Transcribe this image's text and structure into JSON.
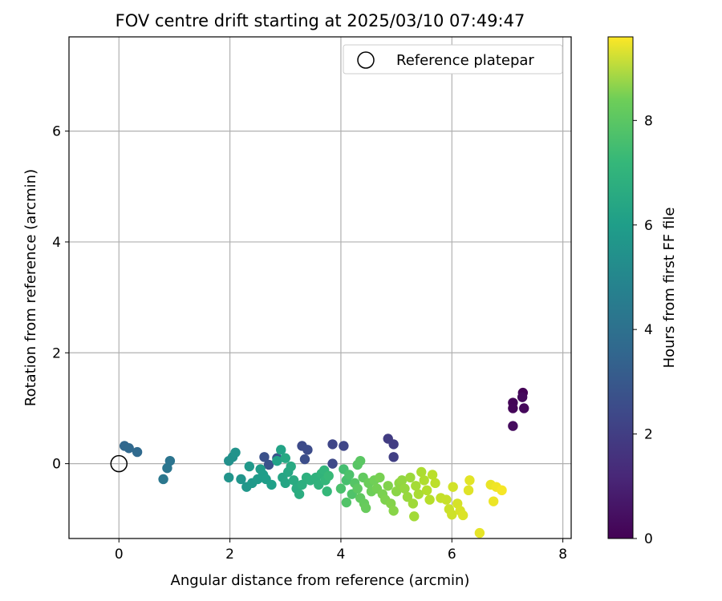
{
  "chart_data": {
    "type": "scatter",
    "title": "FOV centre drift starting at 2025/03/10 07:49:47",
    "xlabel": "Angular distance from reference (arcmin)",
    "ylabel": "Rotation from reference (arcmin)",
    "xlim": [
      -0.9,
      8.15
    ],
    "ylim": [
      -1.35,
      7.7
    ],
    "xticks": [
      0,
      2,
      4,
      6,
      8
    ],
    "yticks": [
      0,
      2,
      4,
      6
    ],
    "grid": true,
    "legend": {
      "position": "top-right",
      "entries": [
        "Reference platepar"
      ]
    },
    "reference_point": {
      "x": 0,
      "y": 0
    },
    "colorbar": {
      "label": "Hours from first FF file",
      "colormap": "viridis",
      "range": [
        0,
        9.6
      ],
      "ticks": [
        0,
        2,
        4,
        6,
        8
      ]
    },
    "points": [
      {
        "x": 7.28,
        "y": 1.28,
        "c": 0.05
      },
      {
        "x": 7.1,
        "y": 1.1,
        "c": 0.1
      },
      {
        "x": 7.1,
        "y": 1.0,
        "c": 0.15
      },
      {
        "x": 7.3,
        "y": 1.0,
        "c": 0.2
      },
      {
        "x": 7.27,
        "y": 1.2,
        "c": 0.25
      },
      {
        "x": 7.1,
        "y": 0.68,
        "c": 0.3
      },
      {
        "x": 4.85,
        "y": 0.45,
        "c": 1.7
      },
      {
        "x": 4.95,
        "y": 0.35,
        "c": 1.75
      },
      {
        "x": 4.95,
        "y": 0.12,
        "c": 1.8
      },
      {
        "x": 3.85,
        "y": 0.35,
        "c": 2.0
      },
      {
        "x": 4.05,
        "y": 0.32,
        "c": 2.05
      },
      {
        "x": 3.85,
        "y": 0.0,
        "c": 2.15
      },
      {
        "x": 3.3,
        "y": 0.32,
        "c": 2.2
      },
      {
        "x": 3.4,
        "y": 0.25,
        "c": 2.25
      },
      {
        "x": 3.35,
        "y": 0.08,
        "c": 2.3
      },
      {
        "x": 2.62,
        "y": 0.12,
        "c": 2.4
      },
      {
        "x": 2.7,
        "y": -0.02,
        "c": 2.45
      },
      {
        "x": 2.85,
        "y": 0.1,
        "c": 2.5
      },
      {
        "x": 0.1,
        "y": 0.32,
        "c": 3.2
      },
      {
        "x": 0.18,
        "y": 0.28,
        "c": 3.25
      },
      {
        "x": 0.33,
        "y": 0.21,
        "c": 3.3
      },
      {
        "x": 0.92,
        "y": 0.05,
        "c": 3.7
      },
      {
        "x": 0.87,
        "y": -0.08,
        "c": 3.75
      },
      {
        "x": 0.8,
        "y": -0.28,
        "c": 3.8
      },
      {
        "x": 1.98,
        "y": 0.05,
        "c": 4.8
      },
      {
        "x": 2.05,
        "y": 0.12,
        "c": 4.85
      },
      {
        "x": 2.1,
        "y": 0.2,
        "c": 4.9
      },
      {
        "x": 1.98,
        "y": -0.25,
        "c": 4.95
      },
      {
        "x": 2.2,
        "y": -0.28,
        "c": 5.0
      },
      {
        "x": 2.3,
        "y": -0.42,
        "c": 5.05
      },
      {
        "x": 2.35,
        "y": -0.05,
        "c": 5.1
      },
      {
        "x": 2.4,
        "y": -0.35,
        "c": 5.15
      },
      {
        "x": 2.5,
        "y": -0.28,
        "c": 5.2
      },
      {
        "x": 2.55,
        "y": -0.1,
        "c": 5.25
      },
      {
        "x": 2.6,
        "y": -0.2,
        "c": 5.3
      },
      {
        "x": 2.65,
        "y": -0.28,
        "c": 5.35
      },
      {
        "x": 2.75,
        "y": -0.38,
        "c": 5.4
      },
      {
        "x": 2.85,
        "y": 0.05,
        "c": 5.5
      },
      {
        "x": 2.92,
        "y": 0.25,
        "c": 5.55
      },
      {
        "x": 2.95,
        "y": -0.25,
        "c": 5.6
      },
      {
        "x": 3.0,
        "y": -0.35,
        "c": 5.65
      },
      {
        "x": 3.05,
        "y": -0.15,
        "c": 5.7
      },
      {
        "x": 3.0,
        "y": 0.1,
        "c": 5.75
      },
      {
        "x": 3.1,
        "y": -0.05,
        "c": 5.8
      },
      {
        "x": 3.15,
        "y": -0.3,
        "c": 5.85
      },
      {
        "x": 3.2,
        "y": -0.45,
        "c": 5.9
      },
      {
        "x": 3.25,
        "y": -0.55,
        "c": 5.95
      },
      {
        "x": 3.3,
        "y": -0.38,
        "c": 6.0
      },
      {
        "x": 3.38,
        "y": -0.25,
        "c": 6.05
      },
      {
        "x": 3.45,
        "y": -0.3,
        "c": 6.1
      },
      {
        "x": 3.55,
        "y": -0.25,
        "c": 6.15
      },
      {
        "x": 3.6,
        "y": -0.38,
        "c": 6.2
      },
      {
        "x": 3.65,
        "y": -0.18,
        "c": 6.25
      },
      {
        "x": 3.7,
        "y": -0.12,
        "c": 6.3
      },
      {
        "x": 3.72,
        "y": -0.3,
        "c": 6.35
      },
      {
        "x": 3.75,
        "y": -0.5,
        "c": 6.4
      },
      {
        "x": 3.78,
        "y": -0.22,
        "c": 6.45
      },
      {
        "x": 4.05,
        "y": -0.1,
        "c": 6.7
      },
      {
        "x": 4.1,
        "y": -0.3,
        "c": 6.75
      },
      {
        "x": 4.0,
        "y": -0.45,
        "c": 6.8
      },
      {
        "x": 4.15,
        "y": -0.2,
        "c": 6.85
      },
      {
        "x": 4.2,
        "y": -0.55,
        "c": 6.9
      },
      {
        "x": 4.1,
        "y": -0.7,
        "c": 6.95
      },
      {
        "x": 4.25,
        "y": -0.35,
        "c": 7.0
      },
      {
        "x": 4.3,
        "y": -0.02,
        "c": 7.05
      },
      {
        "x": 4.35,
        "y": 0.05,
        "c": 7.1
      },
      {
        "x": 4.3,
        "y": -0.45,
        "c": 7.15
      },
      {
        "x": 4.35,
        "y": -0.62,
        "c": 7.2
      },
      {
        "x": 4.4,
        "y": -0.25,
        "c": 7.25
      },
      {
        "x": 4.42,
        "y": -0.72,
        "c": 7.3
      },
      {
        "x": 4.45,
        "y": -0.8,
        "c": 7.35
      },
      {
        "x": 4.5,
        "y": -0.35,
        "c": 7.4
      },
      {
        "x": 4.55,
        "y": -0.5,
        "c": 7.45
      },
      {
        "x": 4.6,
        "y": -0.3,
        "c": 7.5
      },
      {
        "x": 4.65,
        "y": -0.45,
        "c": 7.55
      },
      {
        "x": 4.7,
        "y": -0.25,
        "c": 7.6
      },
      {
        "x": 4.75,
        "y": -0.55,
        "c": 7.65
      },
      {
        "x": 4.8,
        "y": -0.65,
        "c": 7.7
      },
      {
        "x": 4.85,
        "y": -0.4,
        "c": 7.75
      },
      {
        "x": 4.9,
        "y": -0.72,
        "c": 7.8
      },
      {
        "x": 4.95,
        "y": -0.85,
        "c": 7.85
      },
      {
        "x": 5.0,
        "y": -0.5,
        "c": 7.9
      },
      {
        "x": 5.05,
        "y": -0.35,
        "c": 7.95
      },
      {
        "x": 5.1,
        "y": -0.3,
        "c": 8.0
      },
      {
        "x": 5.15,
        "y": -0.45,
        "c": 8.05
      },
      {
        "x": 5.2,
        "y": -0.6,
        "c": 8.1
      },
      {
        "x": 5.25,
        "y": -0.25,
        "c": 8.15
      },
      {
        "x": 5.3,
        "y": -0.72,
        "c": 8.2
      },
      {
        "x": 5.32,
        "y": -0.95,
        "c": 8.25
      },
      {
        "x": 5.35,
        "y": -0.4,
        "c": 8.3
      },
      {
        "x": 5.4,
        "y": -0.55,
        "c": 8.35
      },
      {
        "x": 5.45,
        "y": -0.15,
        "c": 8.4
      },
      {
        "x": 5.5,
        "y": -0.3,
        "c": 8.45
      },
      {
        "x": 5.55,
        "y": -0.48,
        "c": 8.5
      },
      {
        "x": 5.6,
        "y": -0.65,
        "c": 8.55
      },
      {
        "x": 5.65,
        "y": -0.2,
        "c": 8.6
      },
      {
        "x": 5.7,
        "y": -0.35,
        "c": 8.65
      },
      {
        "x": 5.8,
        "y": -0.62,
        "c": 8.75
      },
      {
        "x": 5.9,
        "y": -0.65,
        "c": 8.8
      },
      {
        "x": 5.95,
        "y": -0.82,
        "c": 8.85
      },
      {
        "x": 6.0,
        "y": -0.92,
        "c": 8.9
      },
      {
        "x": 6.02,
        "y": -0.42,
        "c": 8.95
      },
      {
        "x": 6.1,
        "y": -0.72,
        "c": 9.0
      },
      {
        "x": 6.15,
        "y": -0.85,
        "c": 9.05
      },
      {
        "x": 6.2,
        "y": -0.93,
        "c": 9.1
      },
      {
        "x": 6.3,
        "y": -0.48,
        "c": 9.15
      },
      {
        "x": 6.32,
        "y": -0.3,
        "c": 9.2
      },
      {
        "x": 6.5,
        "y": -1.25,
        "c": 9.25
      },
      {
        "x": 6.7,
        "y": -0.38,
        "c": 9.3
      },
      {
        "x": 6.75,
        "y": -0.68,
        "c": 9.35
      },
      {
        "x": 6.8,
        "y": -0.42,
        "c": 9.4
      },
      {
        "x": 6.9,
        "y": -0.48,
        "c": 9.5
      }
    ]
  }
}
